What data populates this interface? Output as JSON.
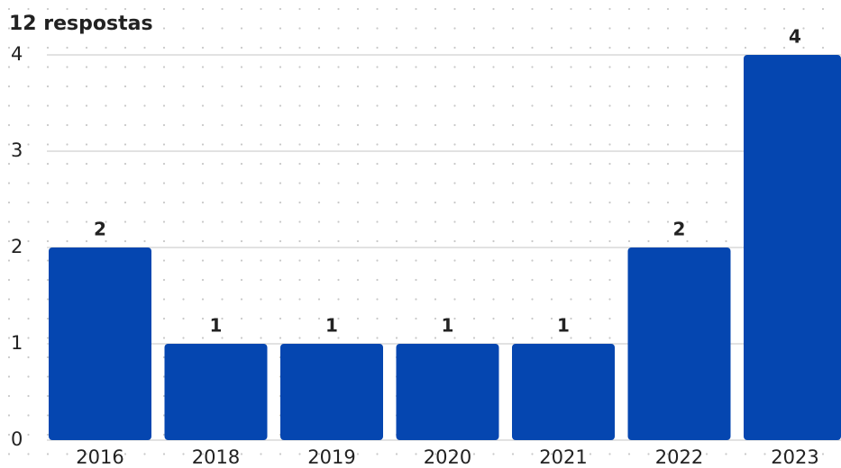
{
  "chart_data": {
    "type": "bar",
    "title": "12 respostas",
    "categories": [
      "2016",
      "2018",
      "2019",
      "2020",
      "2021",
      "2022",
      "2023"
    ],
    "values": [
      2,
      1,
      1,
      1,
      1,
      2,
      4
    ],
    "color": "#0546b0",
    "ylim": [
      0,
      4
    ],
    "yticks": [
      0,
      1,
      2,
      3,
      4
    ],
    "grid": true
  }
}
